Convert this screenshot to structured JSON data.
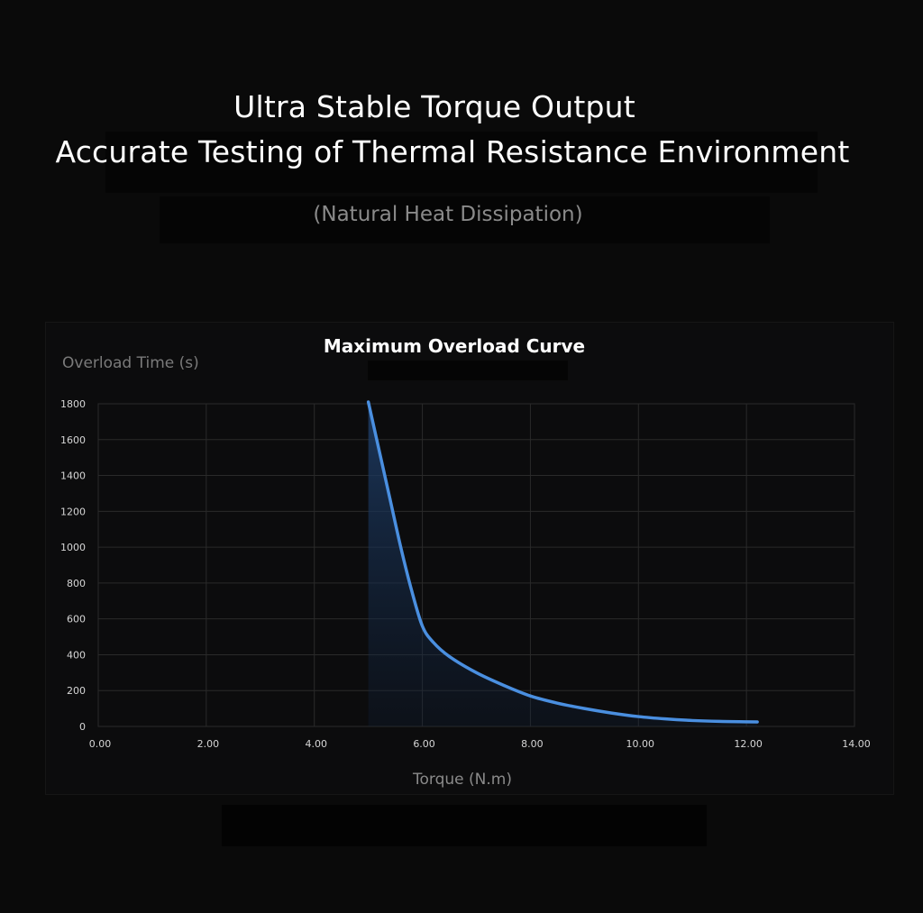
{
  "header": {
    "title_line1": "Ultra Stable Torque Output",
    "title_line2": "Accurate Testing of Thermal Resistance Environment",
    "subtitle": "(Natural Heat Dissipation)"
  },
  "colors": {
    "background": "#0a0a0a",
    "curve": "#4a8fe0",
    "grid": "#2a2a2a",
    "fill_top": "#1f3f6a"
  },
  "chart_data": {
    "type": "area",
    "title": "Maximum Overload Curve",
    "xlabel": "Torque (N.m)",
    "ylabel": "Overload Time (s)",
    "xlim": [
      0,
      14
    ],
    "ylim": [
      0,
      1800
    ],
    "x_ticks": [
      "0.00",
      "2.00",
      "4.00",
      "6.00",
      "8.00",
      "10.00",
      "12.00",
      "14.00"
    ],
    "y_ticks": [
      "0",
      "200",
      "400",
      "600",
      "800",
      "1000",
      "1200",
      "1400",
      "1600",
      "1800"
    ],
    "grid": true,
    "series": [
      {
        "x": [
          5.0,
          5.2,
          5.4,
          5.6,
          5.8,
          6.0,
          6.2,
          6.5,
          7.0,
          7.5,
          8.0,
          8.5,
          9.0,
          9.5,
          10.0,
          10.5,
          11.0,
          11.5,
          12.0,
          12.2
        ],
        "y": [
          1810,
          1540,
          1270,
          1000,
          760,
          560,
          470,
          390,
          300,
          230,
          170,
          130,
          100,
          75,
          55,
          42,
          33,
          28,
          26,
          25
        ]
      }
    ]
  }
}
